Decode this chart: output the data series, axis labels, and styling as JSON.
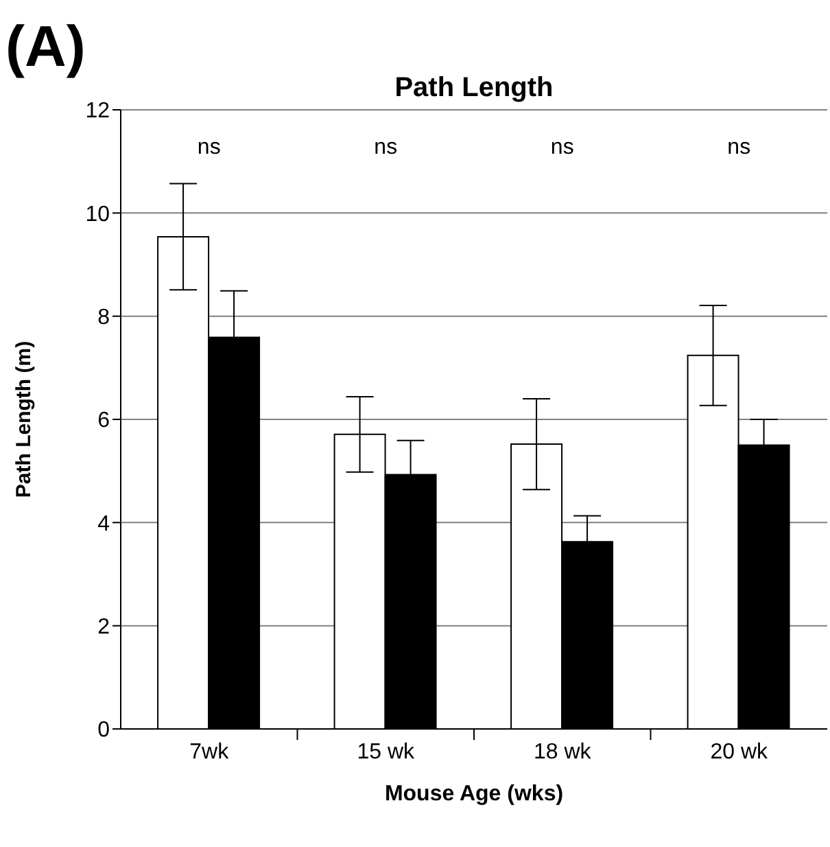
{
  "chart_data": {
    "type": "bar",
    "title": "Path Length",
    "xlabel": "Mouse Age (wks)",
    "ylabel": "Path Length (m)",
    "categories": [
      "7wk",
      "15 wk",
      "18 wk",
      "20 wk"
    ],
    "series": [
      {
        "color": "#ffffff",
        "values": [
          9.54,
          5.71,
          5.52,
          7.24
        ],
        "errors": [
          1.03,
          0.73,
          0.88,
          0.97
        ]
      },
      {
        "color": "#000000",
        "values": [
          7.59,
          4.93,
          3.63,
          5.5
        ],
        "errors": [
          0.9,
          0.66,
          0.5,
          0.5
        ]
      }
    ],
    "ylim": [
      0,
      12
    ],
    "yticks": [
      0,
      2,
      4,
      6,
      8,
      10,
      12
    ],
    "grid": "y",
    "legend": false,
    "annotations": [
      "(A)",
      "ns",
      "ns",
      "ns",
      "ns"
    ]
  }
}
